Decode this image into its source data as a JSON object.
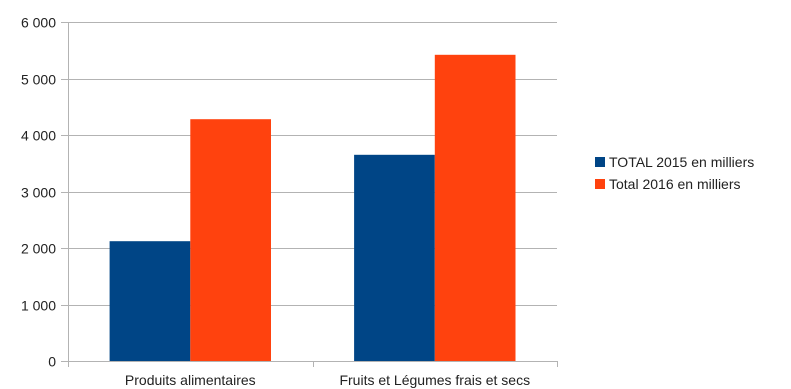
{
  "chart_data": {
    "type": "bar",
    "categories": [
      "Produits alimentaires",
      "Fruits et Légumes frais et secs"
    ],
    "series": [
      {
        "name": "TOTAL 2015 en milliers",
        "values": [
          2120,
          3650
        ],
        "color": "#004586"
      },
      {
        "name": "Total 2016 en milliers",
        "values": [
          4280,
          5420
        ],
        "color": "#ff420e"
      }
    ],
    "ylim": [
      0,
      6000
    ],
    "yticks": [
      0,
      1000,
      2000,
      3000,
      4000,
      5000,
      6000
    ],
    "ytick_labels": [
      "0",
      "1 000",
      "2 000",
      "3 000",
      "4 000",
      "5 000",
      "6 000"
    ],
    "grid": true,
    "legend": "right",
    "title": "",
    "xlabel": "",
    "ylabel": ""
  }
}
